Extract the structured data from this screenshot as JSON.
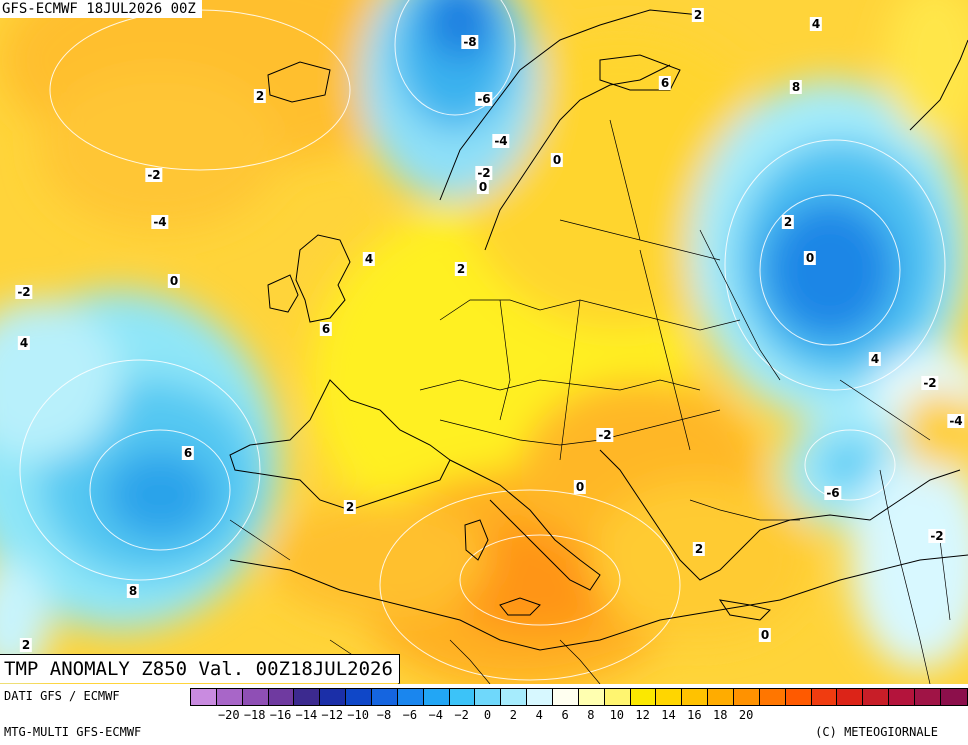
{
  "header": {
    "model_run": "GFS-ECMWF 18JUL2026 00Z"
  },
  "title": "TMP ANOMALY Z850 Val. 00Z18JUL2026",
  "footer": {
    "data_source": "DATI GFS / ECMWF",
    "product": "MTG-MULTI GFS-ECMWF",
    "copyright": "(C) METEOGIORNALE"
  },
  "contour_labels": [
    "-8",
    "-6",
    "-4",
    "-2",
    "0",
    "2",
    "4",
    "6",
    "8",
    "2",
    "0",
    "4",
    "-2",
    "-4",
    "-6",
    "-2",
    "0",
    "2",
    "-2",
    "0",
    "2",
    "6",
    "8",
    "2",
    "4",
    "-2",
    "0",
    "-4",
    "-2",
    "2",
    "4",
    "6",
    "2",
    "0",
    "-2",
    "4",
    "0",
    "6",
    "4"
  ],
  "legend": {
    "ticks": [
      "−20",
      "−18",
      "−16",
      "−14",
      "−12",
      "−10",
      "−8",
      "−6",
      "−4",
      "−2",
      "0",
      "2",
      "4",
      "6",
      "8",
      "10",
      "12",
      "14",
      "16",
      "18",
      "20"
    ],
    "colors": [
      "#c98be0",
      "#a866c8",
      "#8f4fb5",
      "#6f3aa0",
      "#3c2a8f",
      "#1b2fa8",
      "#0f47c8",
      "#1565e0",
      "#1a86ee",
      "#22a6f5",
      "#3cc3f8",
      "#6fd8fb",
      "#a6ecfd",
      "#d7f8ff",
      "#fffff0",
      "#ffffb0",
      "#fff570",
      "#fbe800",
      "#ffd600",
      "#ffc200",
      "#ffac00",
      "#ff9200",
      "#ff7600",
      "#ff5a00",
      "#f03c10",
      "#dc2418",
      "#c81e28",
      "#b4143c",
      "#a01446",
      "#8c0f4b"
    ]
  }
}
